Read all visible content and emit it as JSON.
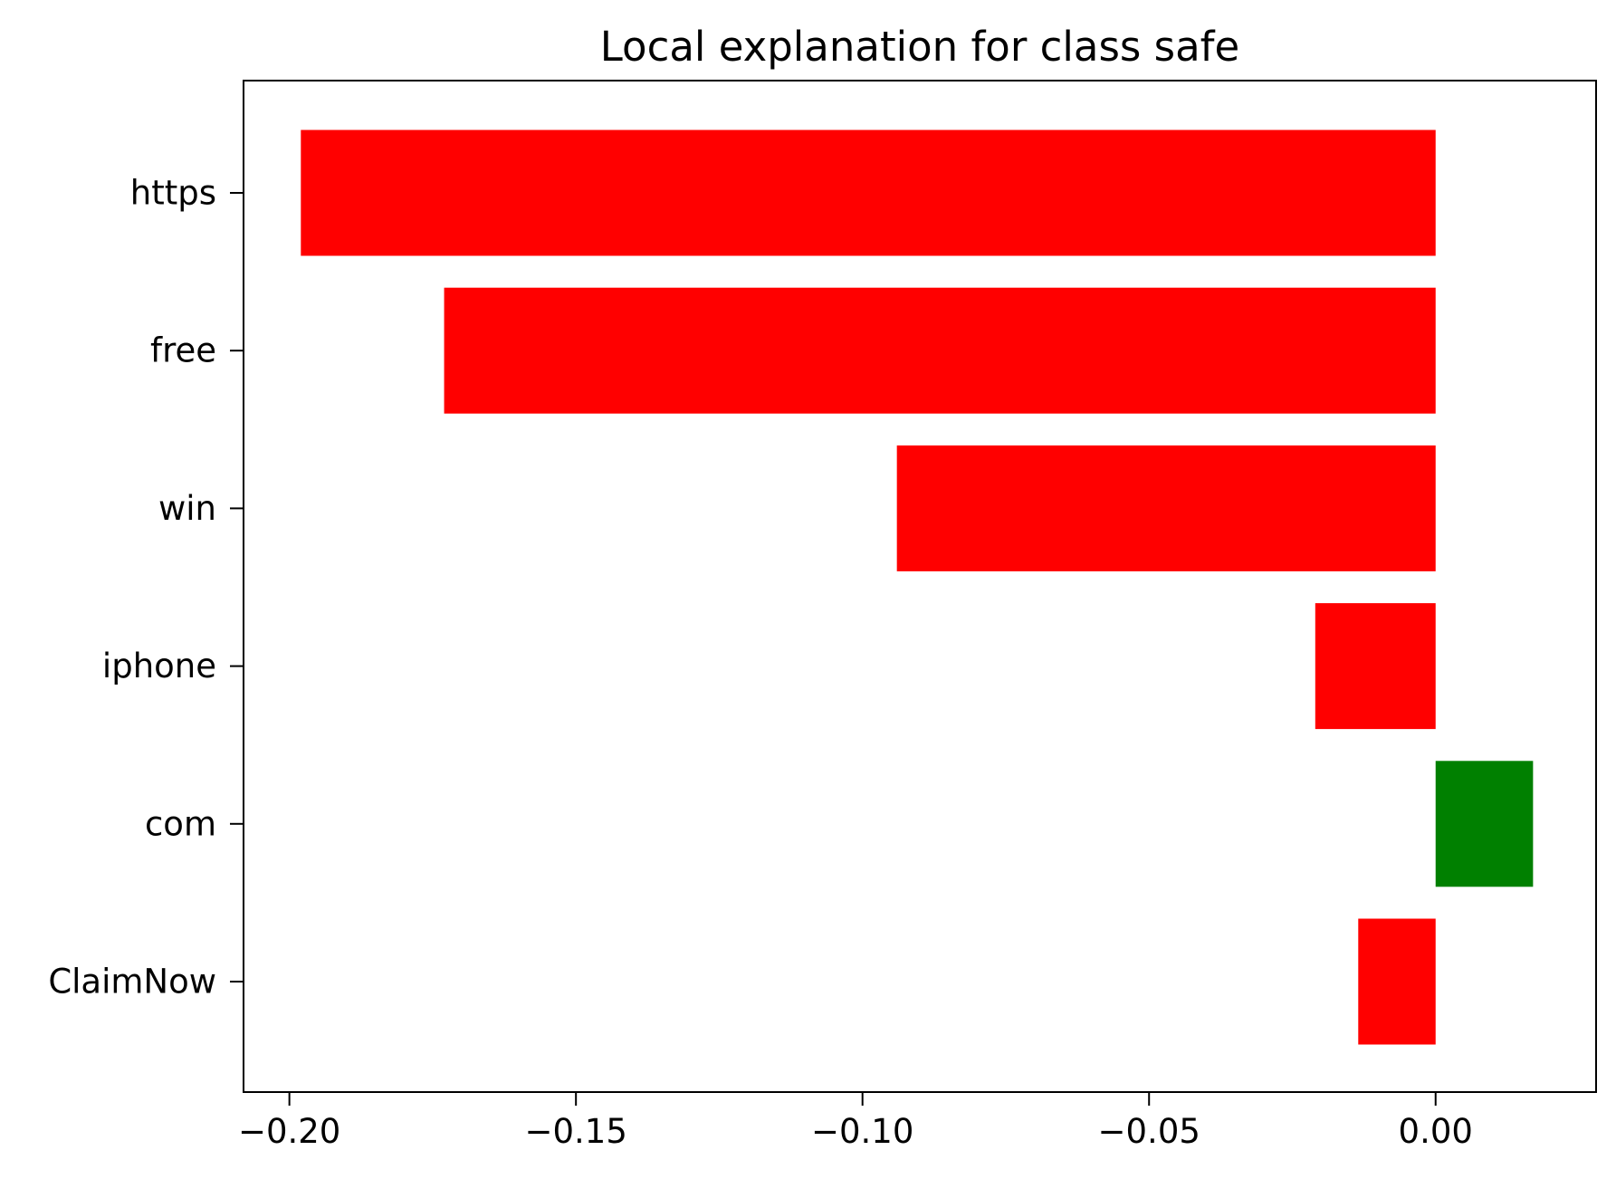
{
  "chart_data": {
    "type": "bar",
    "orientation": "horizontal",
    "title": "Local explanation for class safe",
    "xlabel": "",
    "ylabel": "",
    "categories": [
      "https",
      "free",
      "win",
      "iphone",
      "com",
      "ClaimNow"
    ],
    "values": [
      -0.198,
      -0.173,
      -0.094,
      -0.021,
      0.017,
      -0.0135
    ],
    "xlim": [
      -0.208,
      0.028
    ],
    "x_ticks": [
      -0.2,
      -0.15,
      -0.1,
      -0.05,
      0.0
    ],
    "x_tick_labels": [
      "−0.20",
      "−0.15",
      "−0.10",
      "−0.05",
      "0.00"
    ],
    "grid": false,
    "legend": "none",
    "colors": {
      "positive": "#008000",
      "negative": "#ff0000",
      "axis": "#000000",
      "background": "#ffffff"
    }
  }
}
